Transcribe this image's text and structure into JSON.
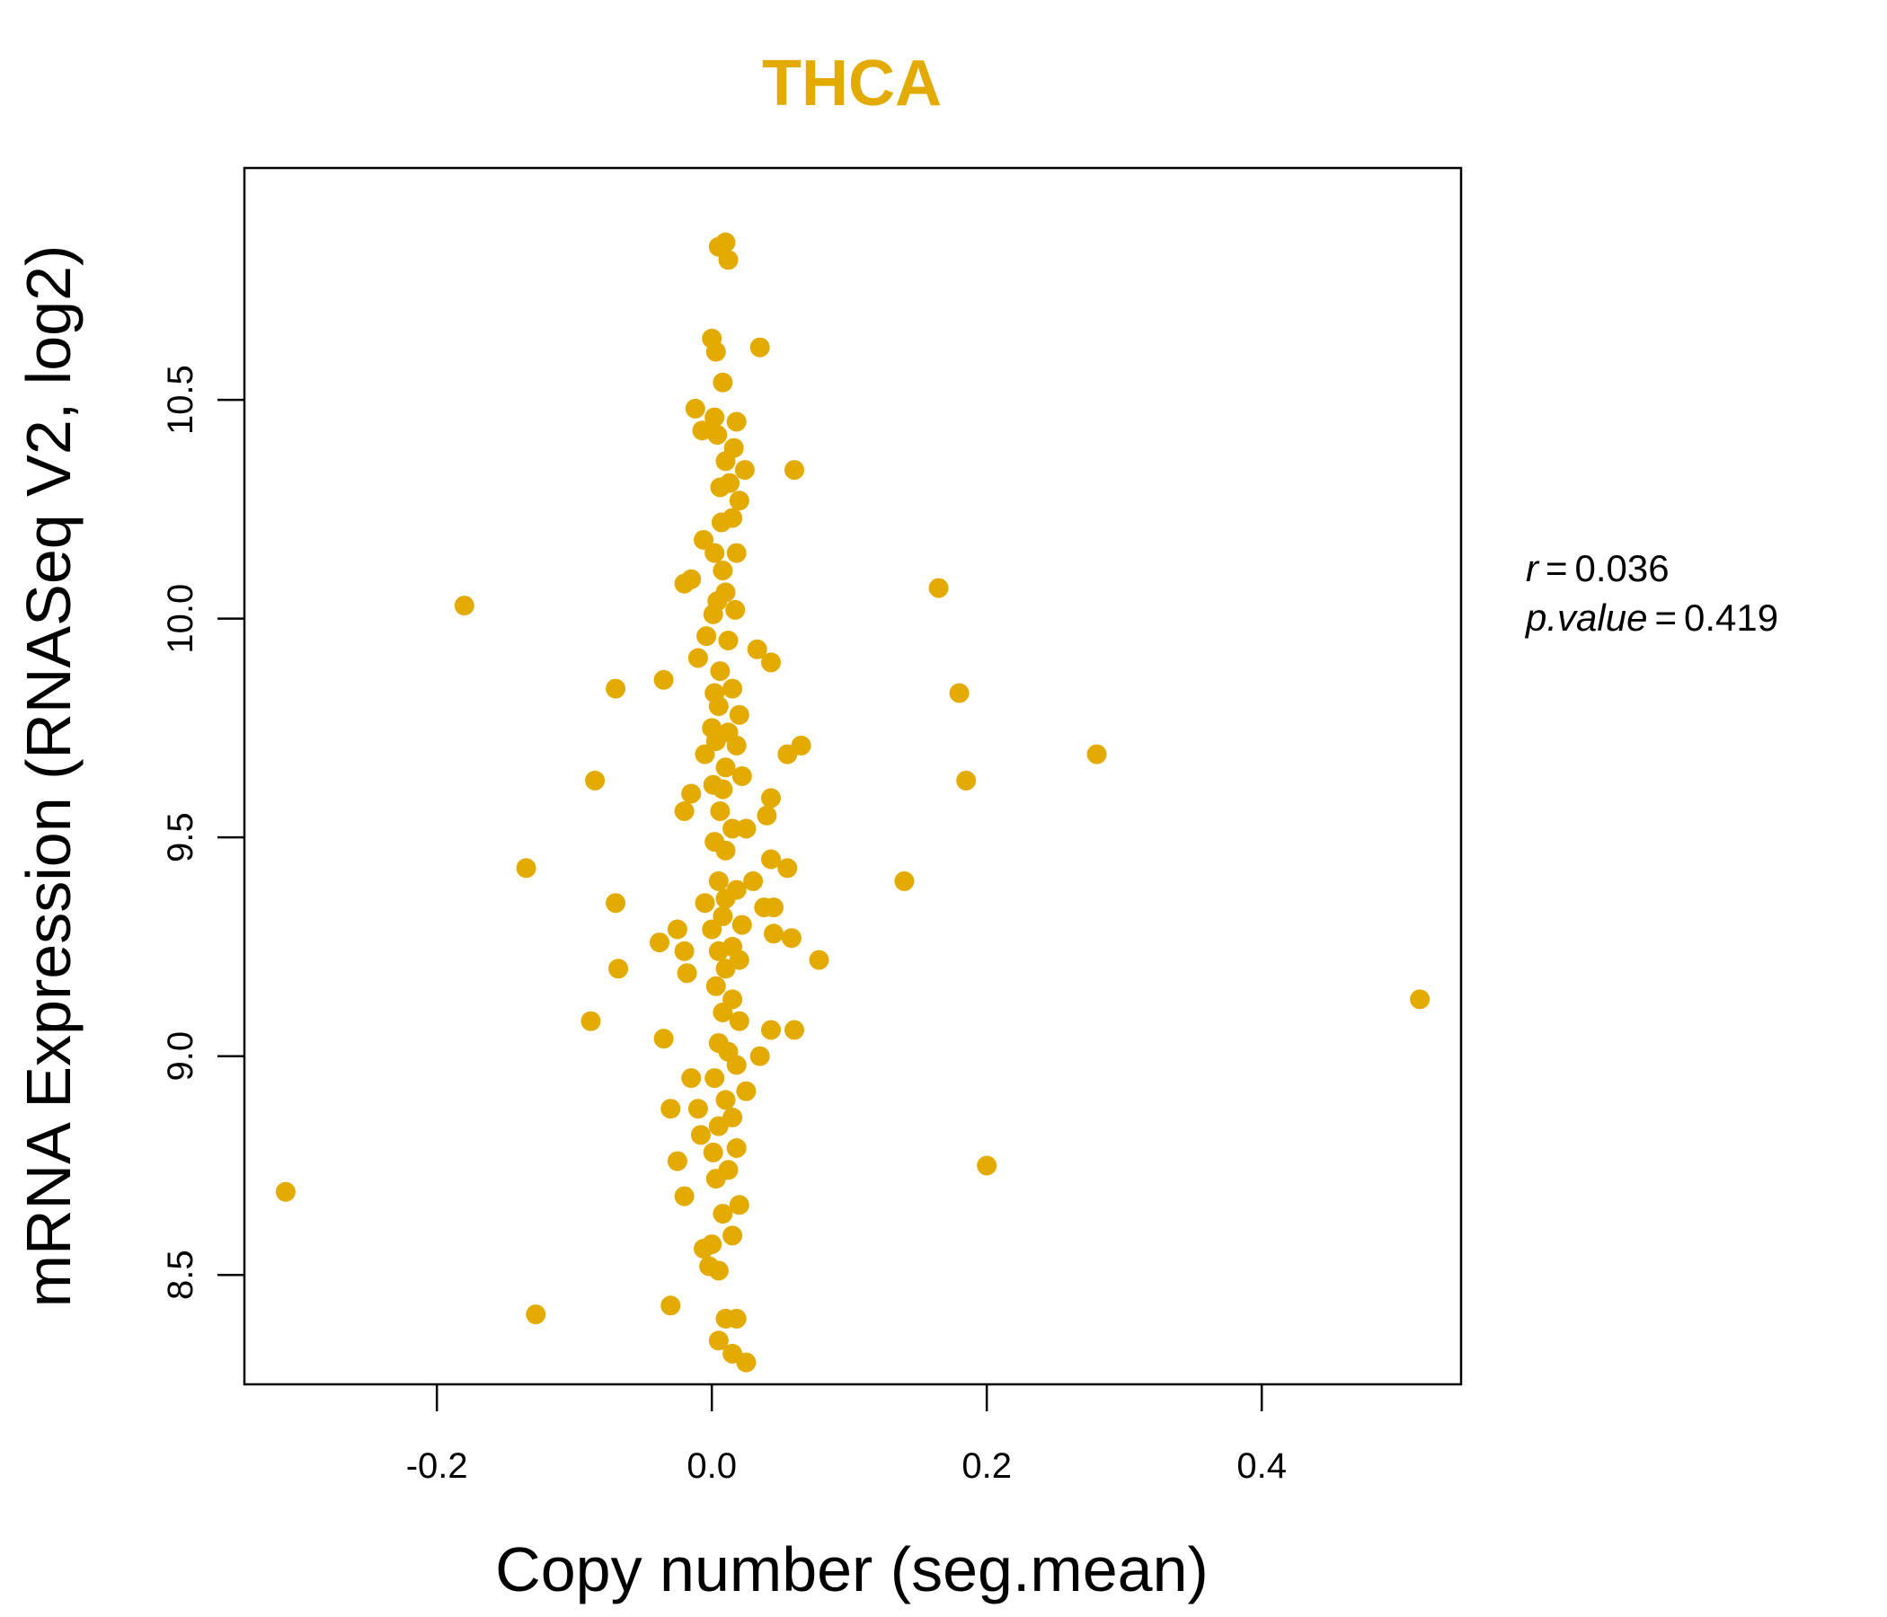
{
  "chart_data": {
    "type": "scatter",
    "title": "THCA",
    "xlabel": "Copy number (seg.mean)",
    "ylabel": "mRNA Expression (RNASeq V2, log2)",
    "xlim": [
      -0.34,
      0.545
    ],
    "ylim": [
      8.25,
      11.03
    ],
    "x_ticks": [
      -0.2,
      0.0,
      0.2,
      0.4
    ],
    "x_tick_labels": [
      "-0.2",
      "0.0",
      "0.2",
      "0.4"
    ],
    "y_ticks": [
      8.5,
      9.0,
      9.5,
      10.0,
      10.5
    ],
    "y_tick_labels": [
      "8.5",
      "9.0",
      "9.5",
      "10.0",
      "10.5"
    ],
    "point_color": "#E3AA00",
    "stats": {
      "r_label": "r",
      "r_value": "0.036",
      "p_label": "p.value",
      "p_value": "0.419"
    },
    "points": [
      [
        0.005,
        10.85
      ],
      [
        0.01,
        10.86
      ],
      [
        0.012,
        10.82
      ],
      [
        0.0,
        10.64
      ],
      [
        0.003,
        10.61
      ],
      [
        0.035,
        10.62
      ],
      [
        0.008,
        10.54
      ],
      [
        -0.012,
        10.48
      ],
      [
        0.002,
        10.46
      ],
      [
        0.018,
        10.45
      ],
      [
        -0.007,
        10.43
      ],
      [
        0.004,
        10.42
      ],
      [
        0.016,
        10.39
      ],
      [
        0.01,
        10.36
      ],
      [
        0.024,
        10.34
      ],
      [
        0.06,
        10.34
      ],
      [
        0.006,
        10.3
      ],
      [
        0.013,
        10.31
      ],
      [
        0.02,
        10.27
      ],
      [
        0.007,
        10.22
      ],
      [
        0.015,
        10.23
      ],
      [
        -0.006,
        10.18
      ],
      [
        0.002,
        10.15
      ],
      [
        0.018,
        10.15
      ],
      [
        0.008,
        10.11
      ],
      [
        -0.02,
        10.08
      ],
      [
        -0.015,
        10.09
      ],
      [
        0.01,
        10.06
      ],
      [
        0.004,
        10.04
      ],
      [
        0.017,
        10.02
      ],
      [
        0.001,
        10.01
      ],
      [
        -0.004,
        9.96
      ],
      [
        0.012,
        9.95
      ],
      [
        0.033,
        9.93
      ],
      [
        0.043,
        9.9
      ],
      [
        -0.01,
        9.91
      ],
      [
        0.006,
        9.88
      ],
      [
        -0.035,
        9.86
      ],
      [
        -0.07,
        9.84
      ],
      [
        0.002,
        9.83
      ],
      [
        0.015,
        9.84
      ],
      [
        0.005,
        9.8
      ],
      [
        0.02,
        9.78
      ],
      [
        0.0,
        9.75
      ],
      [
        0.012,
        9.74
      ],
      [
        0.003,
        9.72
      ],
      [
        0.018,
        9.71
      ],
      [
        0.065,
        9.71
      ],
      [
        0.055,
        9.69
      ],
      [
        -0.005,
        9.69
      ],
      [
        0.01,
        9.66
      ],
      [
        0.022,
        9.64
      ],
      [
        0.001,
        9.62
      ],
      [
        -0.085,
        9.63
      ],
      [
        0.008,
        9.61
      ],
      [
        -0.015,
        9.6
      ],
      [
        0.043,
        9.59
      ],
      [
        0.006,
        9.56
      ],
      [
        -0.02,
        9.56
      ],
      [
        0.04,
        9.55
      ],
      [
        0.015,
        9.52
      ],
      [
        0.025,
        9.52
      ],
      [
        0.002,
        9.49
      ],
      [
        0.01,
        9.47
      ],
      [
        0.043,
        9.45
      ],
      [
        0.055,
        9.43
      ],
      [
        -0.135,
        9.43
      ],
      [
        0.03,
        9.4
      ],
      [
        0.005,
        9.4
      ],
      [
        0.018,
        9.38
      ],
      [
        0.01,
        9.36
      ],
      [
        -0.005,
        9.35
      ],
      [
        0.038,
        9.34
      ],
      [
        0.045,
        9.34
      ],
      [
        -0.07,
        9.35
      ],
      [
        0.008,
        9.32
      ],
      [
        0.022,
        9.3
      ],
      [
        0.0,
        9.29
      ],
      [
        -0.025,
        9.29
      ],
      [
        0.045,
        9.28
      ],
      [
        0.058,
        9.27
      ],
      [
        -0.038,
        9.26
      ],
      [
        0.015,
        9.25
      ],
      [
        0.005,
        9.24
      ],
      [
        -0.02,
        9.24
      ],
      [
        0.02,
        9.22
      ],
      [
        0.078,
        9.22
      ],
      [
        -0.068,
        9.2
      ],
      [
        0.01,
        9.2
      ],
      [
        -0.018,
        9.19
      ],
      [
        0.003,
        9.16
      ],
      [
        0.015,
        9.13
      ],
      [
        0.008,
        9.1
      ],
      [
        0.02,
        9.08
      ],
      [
        -0.088,
        9.08
      ],
      [
        0.043,
        9.06
      ],
      [
        0.06,
        9.06
      ],
      [
        -0.035,
        9.04
      ],
      [
        0.005,
        9.03
      ],
      [
        0.012,
        9.01
      ],
      [
        0.035,
        9.0
      ],
      [
        0.018,
        8.98
      ],
      [
        -0.015,
        8.95
      ],
      [
        0.002,
        8.95
      ],
      [
        0.025,
        8.92
      ],
      [
        0.01,
        8.9
      ],
      [
        -0.03,
        8.88
      ],
      [
        -0.01,
        8.88
      ],
      [
        0.015,
        8.86
      ],
      [
        0.005,
        8.84
      ],
      [
        -0.008,
        8.82
      ],
      [
        0.018,
        8.79
      ],
      [
        0.001,
        8.78
      ],
      [
        -0.025,
        8.76
      ],
      [
        0.012,
        8.74
      ],
      [
        0.003,
        8.72
      ],
      [
        -0.02,
        8.68
      ],
      [
        0.02,
        8.66
      ],
      [
        0.008,
        8.64
      ],
      [
        0.015,
        8.59
      ],
      [
        0.0,
        8.57
      ],
      [
        -0.006,
        8.56
      ],
      [
        0.005,
        8.51
      ],
      [
        -0.002,
        8.52
      ],
      [
        -0.03,
        8.43
      ],
      [
        0.01,
        8.4
      ],
      [
        0.018,
        8.4
      ],
      [
        0.005,
        8.35
      ],
      [
        0.015,
        8.32
      ],
      [
        0.025,
        8.3
      ],
      [
        -0.18,
        10.03
      ],
      [
        0.165,
        10.07
      ],
      [
        0.18,
        9.83
      ],
      [
        0.28,
        9.69
      ],
      [
        0.185,
        9.63
      ],
      [
        0.14,
        9.4
      ],
      [
        0.515,
        9.13
      ],
      [
        0.2,
        8.75
      ],
      [
        -0.31,
        8.69
      ],
      [
        -0.128,
        8.41
      ]
    ]
  }
}
